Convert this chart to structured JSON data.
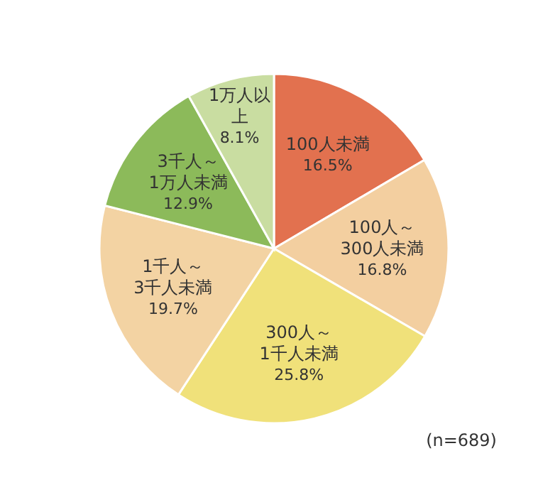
{
  "chart_data": {
    "type": "pie",
    "categories": [
      "100人未満",
      "100人～\n300人未満",
      "300人～\n1千人未満",
      "1千人～\n3千人未満",
      "3千人～\n1万人未満",
      "1万人以上"
    ],
    "values": [
      16.5,
      16.8,
      25.8,
      19.7,
      12.9,
      8.1
    ],
    "value_labels": [
      "16.5%",
      "16.8%",
      "25.8%",
      "19.7%",
      "12.9%",
      "8.1%"
    ],
    "colors": [
      "#e2714f",
      "#f3cfa0",
      "#f0e17a",
      "#f3d3a3",
      "#8cba5a",
      "#c9dda1"
    ],
    "annotations": [
      "(n=689)"
    ]
  }
}
